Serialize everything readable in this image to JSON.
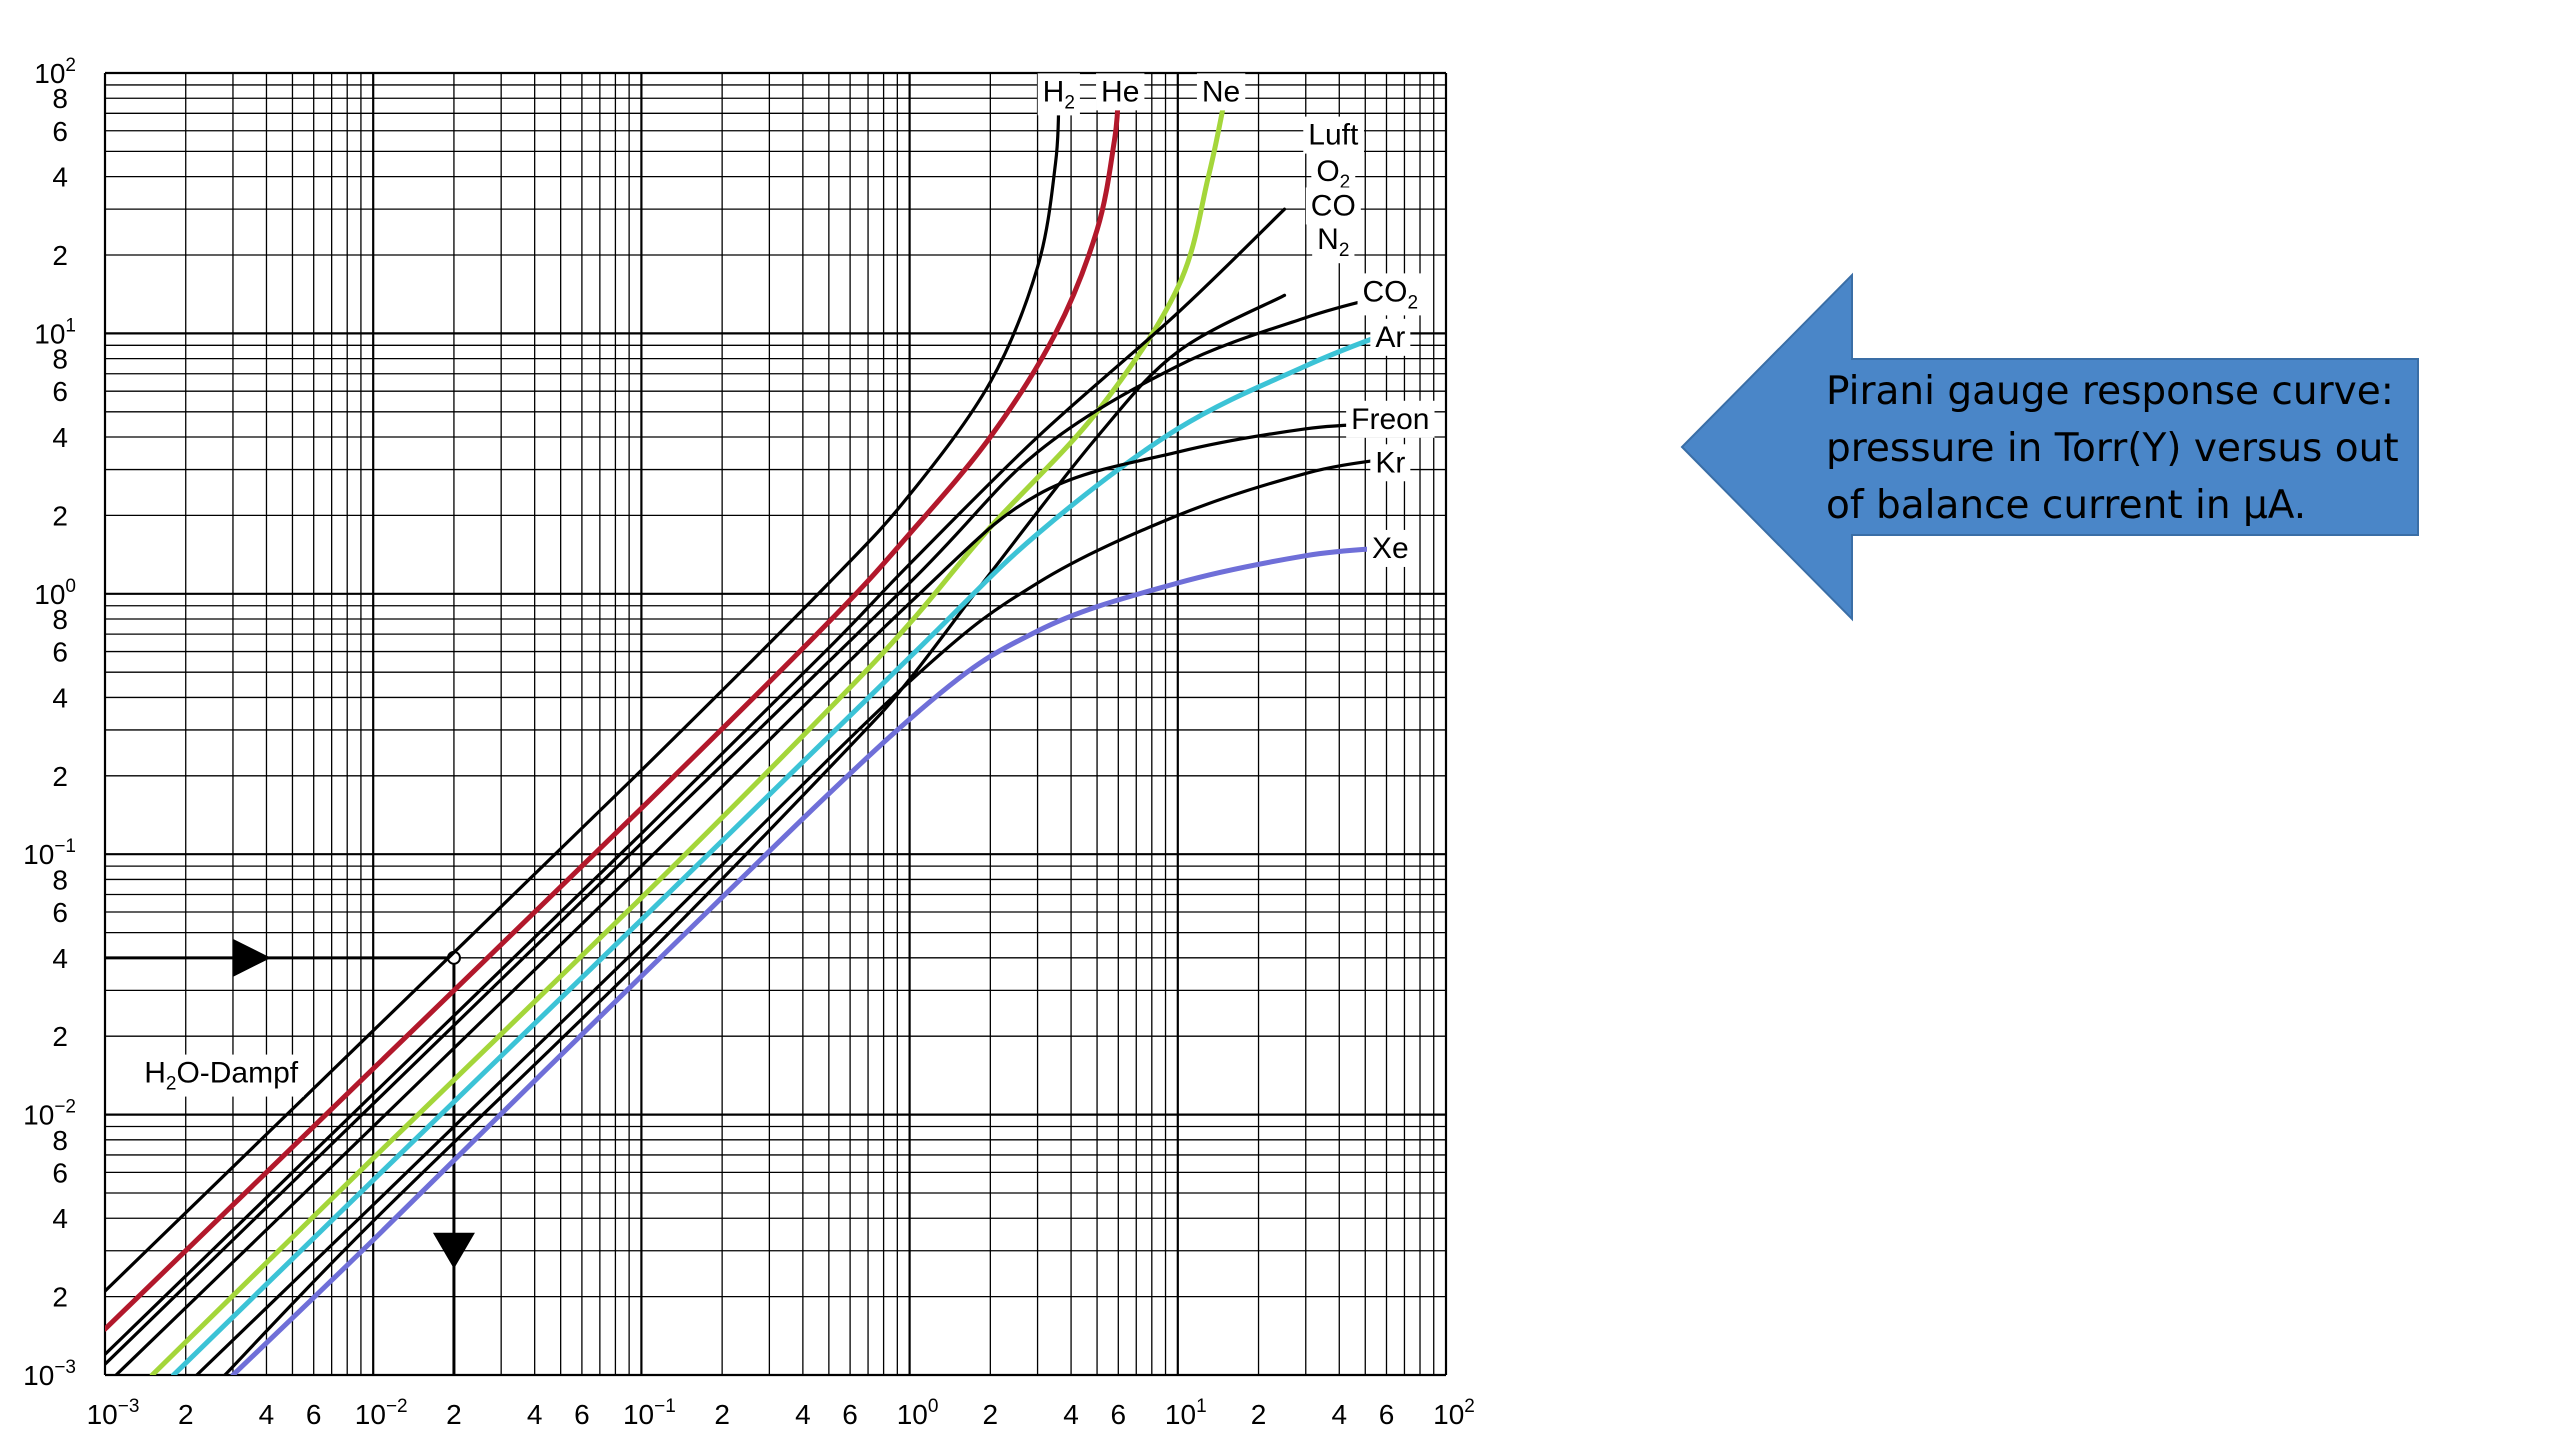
{
  "colors": {
    "grid": "#000000",
    "black": "#000000",
    "helium": "#b2182b",
    "neon": "#a4d63a",
    "argon": "#3cc3d6",
    "xenon": "#6f6fd8",
    "arrow_fill": "#4a86c8",
    "arrow_stroke": "#3a6ea6"
  },
  "chart_data": {
    "type": "line",
    "title": "",
    "xlabel": "",
    "ylabel": "",
    "xscale": "log",
    "yscale": "log",
    "xlim": [
      0.001,
      100
    ],
    "ylim": [
      0.001,
      100
    ],
    "grid": true,
    "x_tick_labels": [
      {
        "x": 0.001,
        "base": "10",
        "exp": "−3"
      },
      {
        "x": 0.002,
        "base": "2",
        "exp": ""
      },
      {
        "x": 0.004,
        "base": "4",
        "exp": ""
      },
      {
        "x": 0.006,
        "base": "6",
        "exp": ""
      },
      {
        "x": 0.01,
        "base": "10",
        "exp": "−2"
      },
      {
        "x": 0.02,
        "base": "2",
        "exp": ""
      },
      {
        "x": 0.04,
        "base": "4",
        "exp": ""
      },
      {
        "x": 0.06,
        "base": "6",
        "exp": ""
      },
      {
        "x": 0.1,
        "base": "10",
        "exp": "−1"
      },
      {
        "x": 0.2,
        "base": "2",
        "exp": ""
      },
      {
        "x": 0.4,
        "base": "4",
        "exp": ""
      },
      {
        "x": 0.6,
        "base": "6",
        "exp": ""
      },
      {
        "x": 1,
        "base": "10",
        "exp": "0"
      },
      {
        "x": 2,
        "base": "2",
        "exp": ""
      },
      {
        "x": 4,
        "base": "4",
        "exp": ""
      },
      {
        "x": 6,
        "base": "6",
        "exp": ""
      },
      {
        "x": 10,
        "base": "10",
        "exp": "1"
      },
      {
        "x": 20,
        "base": "2",
        "exp": ""
      },
      {
        "x": 40,
        "base": "4",
        "exp": ""
      },
      {
        "x": 60,
        "base": "6",
        "exp": ""
      },
      {
        "x": 100,
        "base": "10",
        "exp": "2"
      }
    ],
    "y_tick_labels": [
      {
        "y": 100,
        "base": "10",
        "exp": "2"
      },
      {
        "y": 80,
        "base": "8",
        "exp": ""
      },
      {
        "y": 60,
        "base": "6",
        "exp": ""
      },
      {
        "y": 40,
        "base": "4",
        "exp": ""
      },
      {
        "y": 20,
        "base": "2",
        "exp": ""
      },
      {
        "y": 10,
        "base": "10",
        "exp": "1"
      },
      {
        "y": 8,
        "base": "8",
        "exp": ""
      },
      {
        "y": 6,
        "base": "6",
        "exp": ""
      },
      {
        "y": 4,
        "base": "4",
        "exp": ""
      },
      {
        "y": 2,
        "base": "2",
        "exp": ""
      },
      {
        "y": 1,
        "base": "10",
        "exp": "0"
      },
      {
        "y": 0.8,
        "base": "8",
        "exp": ""
      },
      {
        "y": 0.6,
        "base": "6",
        "exp": ""
      },
      {
        "y": 0.4,
        "base": "4",
        "exp": ""
      },
      {
        "y": 0.2,
        "base": "2",
        "exp": ""
      },
      {
        "y": 0.1,
        "base": "10",
        "exp": "−1"
      },
      {
        "y": 0.08,
        "base": "8",
        "exp": ""
      },
      {
        "y": 0.06,
        "base": "6",
        "exp": ""
      },
      {
        "y": 0.04,
        "base": "4",
        "exp": ""
      },
      {
        "y": 0.02,
        "base": "2",
        "exp": ""
      },
      {
        "y": 0.01,
        "base": "10",
        "exp": "−2"
      },
      {
        "y": 0.008,
        "base": "8",
        "exp": ""
      },
      {
        "y": 0.006,
        "base": "6",
        "exp": ""
      },
      {
        "y": 0.004,
        "base": "4",
        "exp": ""
      },
      {
        "y": 0.002,
        "base": "2",
        "exp": ""
      },
      {
        "y": 0.001,
        "base": "10",
        "exp": "−3"
      }
    ],
    "series": [
      {
        "name": "H₂",
        "color_key": "black",
        "points": [
          [
            0.001,
            0.0021
          ],
          [
            0.01,
            0.021
          ],
          [
            0.1,
            0.21
          ],
          [
            0.5,
            1.1
          ],
          [
            1,
            2.4
          ],
          [
            2,
            6.5
          ],
          [
            3,
            18
          ],
          [
            3.5,
            45
          ],
          [
            3.6,
            80
          ]
        ]
      },
      {
        "name": "He",
        "color_key": "helium",
        "points": [
          [
            0.001,
            0.0015
          ],
          [
            0.01,
            0.015
          ],
          [
            0.1,
            0.15
          ],
          [
            0.5,
            0.78
          ],
          [
            1,
            1.7
          ],
          [
            2,
            4
          ],
          [
            3.5,
            10
          ],
          [
            5,
            25
          ],
          [
            5.8,
            55
          ],
          [
            6,
            80
          ]
        ]
      },
      {
        "name": "Ne",
        "color_key": "neon",
        "points": [
          [
            0.0015,
            0.001
          ],
          [
            0.01,
            0.0068
          ],
          [
            0.1,
            0.068
          ],
          [
            0.5,
            0.36
          ],
          [
            1,
            0.77
          ],
          [
            2,
            1.8
          ],
          [
            5,
            5
          ],
          [
            10,
            15
          ],
          [
            13,
            40
          ],
          [
            15,
            80
          ]
        ]
      },
      {
        "name": "Luft O₂ CO N₂",
        "color_key": "black",
        "points": [
          [
            0.001,
            0.0012
          ],
          [
            0.01,
            0.012
          ],
          [
            0.1,
            0.12
          ],
          [
            0.5,
            0.62
          ],
          [
            1,
            1.3
          ],
          [
            3,
            4
          ],
          [
            10,
            12
          ],
          [
            25,
            30
          ]
        ]
      },
      {
        "name": "H₂O-Dampf",
        "color_key": "black",
        "points": [
          [
            0.0028,
            0.001
          ],
          [
            0.01,
            0.0039
          ],
          [
            0.1,
            0.039
          ],
          [
            0.6,
            0.26
          ],
          [
            1,
            0.47
          ],
          [
            2,
            1.2
          ],
          [
            5,
            4
          ],
          [
            10,
            8.5
          ],
          [
            25,
            14
          ]
        ]
      },
      {
        "name": "CO₂",
        "color_key": "black",
        "points": [
          [
            0.001,
            0.0011
          ],
          [
            0.01,
            0.011
          ],
          [
            0.1,
            0.11
          ],
          [
            1,
            1.1
          ],
          [
            3,
            3.5
          ],
          [
            10,
            7.5
          ],
          [
            30,
            11.5
          ],
          [
            60,
            14
          ]
        ]
      },
      {
        "name": "Ar",
        "color_key": "argon",
        "points": [
          [
            0.0018,
            0.001
          ],
          [
            0.01,
            0.0056
          ],
          [
            0.1,
            0.056
          ],
          [
            1,
            0.57
          ],
          [
            3,
            1.7
          ],
          [
            10,
            4.3
          ],
          [
            30,
            7.5
          ],
          [
            60,
            10
          ]
        ]
      },
      {
        "name": "Freon",
        "color_key": "black",
        "points": [
          [
            0.0011,
            0.001
          ],
          [
            0.01,
            0.009
          ],
          [
            0.1,
            0.09
          ],
          [
            1,
            0.92
          ],
          [
            3,
            2.4
          ],
          [
            10,
            3.5
          ],
          [
            30,
            4.3
          ],
          [
            60,
            4.5
          ]
        ]
      },
      {
        "name": "Kr",
        "color_key": "black",
        "points": [
          [
            0.0022,
            0.001
          ],
          [
            0.01,
            0.0045
          ],
          [
            0.1,
            0.045
          ],
          [
            1,
            0.46
          ],
          [
            3,
            1.1
          ],
          [
            10,
            2
          ],
          [
            30,
            2.9
          ],
          [
            60,
            3.3
          ]
        ]
      },
      {
        "name": "Xe",
        "color_key": "xenon",
        "points": [
          [
            0.003,
            0.001
          ],
          [
            0.01,
            0.0033
          ],
          [
            0.1,
            0.034
          ],
          [
            1,
            0.33
          ],
          [
            3,
            0.72
          ],
          [
            10,
            1.1
          ],
          [
            30,
            1.4
          ],
          [
            60,
            1.5
          ]
        ]
      }
    ],
    "series_labels": [
      {
        "key": "h2",
        "x": 3.6,
        "y": 85,
        "base": "H",
        "sub": "2"
      },
      {
        "key": "he",
        "x": 6.1,
        "y": 85,
        "base": "He",
        "sub": ""
      },
      {
        "key": "ne",
        "x": 14.5,
        "y": 85,
        "base": "Ne",
        "sub": ""
      },
      {
        "key": "luft",
        "x": 38,
        "y": 58,
        "base": "Luft",
        "sub": ""
      },
      {
        "key": "o2",
        "x": 38,
        "y": 42,
        "base": "O",
        "sub": "2"
      },
      {
        "key": "co",
        "x": 38,
        "y": 31,
        "base": "CO",
        "sub": ""
      },
      {
        "key": "n2",
        "x": 38,
        "y": 23,
        "base": "N",
        "sub": "2"
      },
      {
        "key": "co2",
        "x": 62,
        "y": 14.5,
        "base": "CO",
        "sub": "2"
      },
      {
        "key": "ar",
        "x": 62,
        "y": 9.7,
        "base": "Ar",
        "sub": ""
      },
      {
        "key": "freon",
        "x": 62,
        "y": 4.7,
        "base": "Freon",
        "sub": ""
      },
      {
        "key": "kr",
        "x": 62,
        "y": 3.2,
        "base": "Kr",
        "sub": ""
      },
      {
        "key": "xe",
        "x": 62,
        "y": 1.5,
        "base": "Xe",
        "sub": ""
      },
      {
        "key": "h2o",
        "x": 0.0014,
        "y": 0.0145,
        "base": "H",
        "sub": "2",
        "tail": "O-Dampf"
      }
    ],
    "annotation": {
      "h_line_y": 0.04,
      "v_line_x": 0.02,
      "right_arrow_x": 0.0035,
      "down_arrow_y": 0.003
    }
  },
  "callout": {
    "text": "Pirani gauge response curve: pressure in Torr(Y) versus out of balance current in µA."
  }
}
